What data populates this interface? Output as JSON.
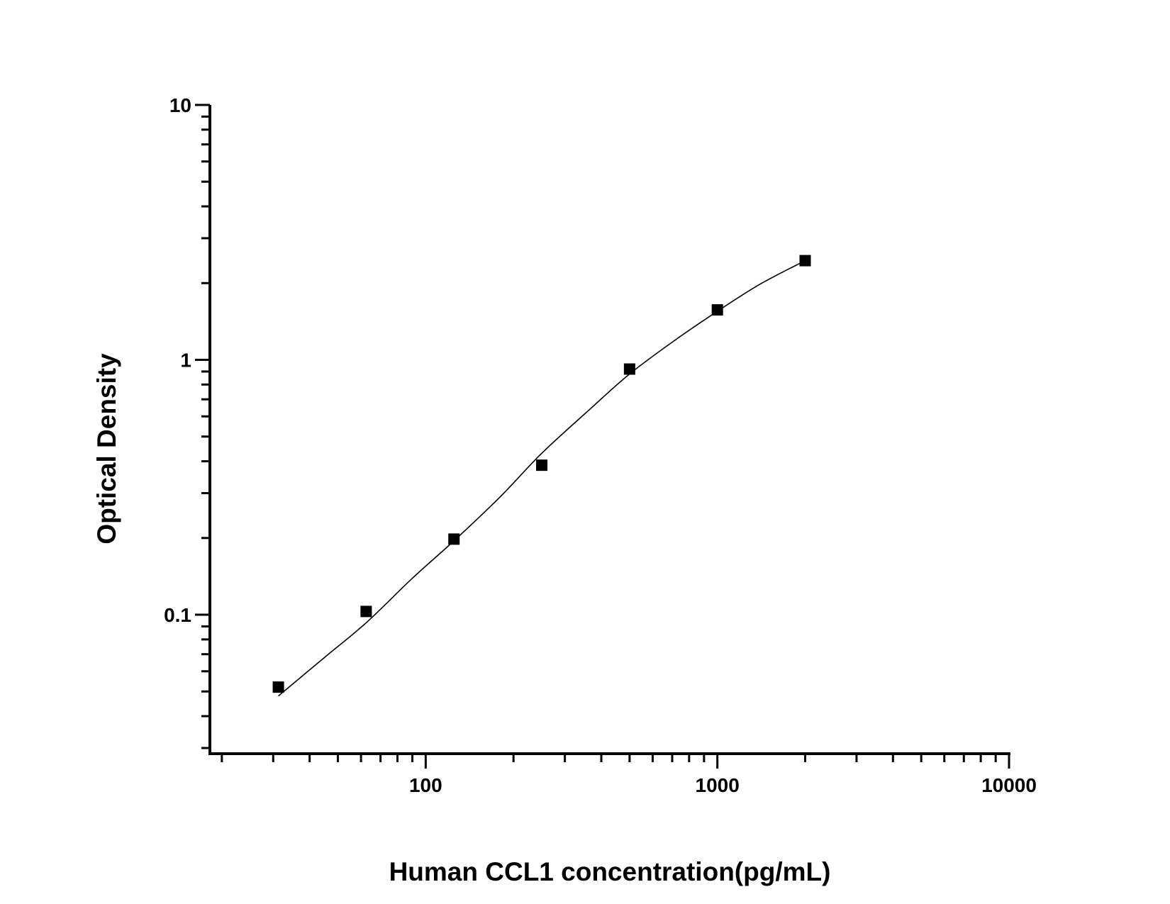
{
  "chart_data": {
    "type": "scatter",
    "title": "",
    "xlabel": "Human CCL1 concentration(pg/mL)",
    "ylabel": "Optical Density",
    "x_scale": "log",
    "y_scale": "log",
    "xlim": [
      18.2,
      10000
    ],
    "ylim": [
      0.0285,
      10
    ],
    "x_ticks": [
      {
        "value": 100,
        "label": "100"
      },
      {
        "value": 1000,
        "label": "1000"
      },
      {
        "value": 10000,
        "label": "10000"
      }
    ],
    "y_ticks": [
      {
        "value": 0.1,
        "label": "0.1"
      },
      {
        "value": 1,
        "label": "1"
      },
      {
        "value": 10,
        "label": "10"
      }
    ],
    "grid": false,
    "marker": "square",
    "color": "#000000",
    "series": [
      {
        "x": [
          31.25,
          62.5,
          125,
          250,
          500,
          1000,
          2000
        ],
        "y": [
          0.052,
          0.103,
          0.198,
          0.386,
          0.92,
          1.57,
          2.45
        ]
      }
    ],
    "fit_curve": {
      "x": [
        31.25,
        45,
        62.5,
        90,
        125,
        180,
        250,
        360,
        500,
        720,
        1000,
        1400,
        2000
      ],
      "y": [
        0.048,
        0.068,
        0.093,
        0.139,
        0.195,
        0.29,
        0.43,
        0.63,
        0.88,
        1.2,
        1.55,
        1.98,
        2.45
      ]
    }
  }
}
